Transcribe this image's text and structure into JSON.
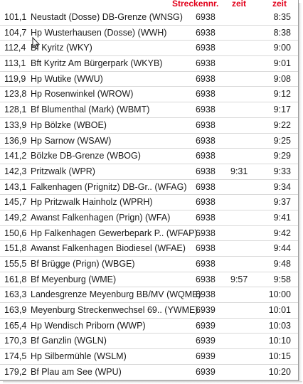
{
  "header": {
    "strecke": "Streckennr.",
    "zeit1": "zeit",
    "zeit2": "zeit"
  },
  "rows": [
    {
      "km": "101,1",
      "name": "Neustadt (Dosse) DB-Grenze (WNSG)",
      "strecke": "6938",
      "an": "",
      "ab": "8:35"
    },
    {
      "km": "104,7",
      "name": "Hp Wusterhausen (Dosse) (WWH)",
      "strecke": "6938",
      "an": "",
      "ab": "8:38"
    },
    {
      "km": "112,4",
      "name": "Bf Kyritz (WKY)",
      "strecke": "6938",
      "an": "",
      "ab": "9:00"
    },
    {
      "km": "113,1",
      "name": "Bft Kyritz Am Bürgerpark (WKYB)",
      "strecke": "6938",
      "an": "",
      "ab": "9:01"
    },
    {
      "km": "119,9",
      "name": "Hp Wutike (WWU)",
      "strecke": "6938",
      "an": "",
      "ab": "9:08"
    },
    {
      "km": "123,8",
      "name": "Hp Rosenwinkel (WROW)",
      "strecke": "6938",
      "an": "",
      "ab": "9:12"
    },
    {
      "km": "128,1",
      "name": "Bf Blumenthal (Mark) (WBMT)",
      "strecke": "6938",
      "an": "",
      "ab": "9:17"
    },
    {
      "km": "133,9",
      "name": "Hp Bölzke (WBOE)",
      "strecke": "6938",
      "an": "",
      "ab": "9:22"
    },
    {
      "km": "136,9",
      "name": "Hp Sarnow (WSAW)",
      "strecke": "6938",
      "an": "",
      "ab": "9:25"
    },
    {
      "km": "141,2",
      "name": "Bölzke DB-Grenze (WBOG)",
      "strecke": "6938",
      "an": "",
      "ab": "9:29"
    },
    {
      "km": "142,3",
      "name": "Pritzwalk (WPR)",
      "strecke": "6938",
      "an": "9:31",
      "ab": "9:33"
    },
    {
      "km": "143,1",
      "name": "Falkenhagen (Prignitz) DB-Gr.. (WFAG)",
      "strecke": "6938",
      "an": "",
      "ab": "9:34"
    },
    {
      "km": "145,7",
      "name": "Hp Pritzwalk Hainholz (WPRH)",
      "strecke": "6938",
      "an": "",
      "ab": "9:37"
    },
    {
      "km": "149,2",
      "name": "Awanst Falkenhagen (Prign) (WFA)",
      "strecke": "6938",
      "an": "",
      "ab": "9:41"
    },
    {
      "km": "150,6",
      "name": "Hp Falkenhagen Gewerbepark P.. (WFAP)",
      "strecke": "6938",
      "an": "",
      "ab": "9:42"
    },
    {
      "km": "151,8",
      "name": "Awanst Falkenhagen Biodiesel (WFAE)",
      "strecke": "6938",
      "an": "",
      "ab": "9:44"
    },
    {
      "km": "155,5",
      "name": "Bf Brügge (Prign) (WBGE)",
      "strecke": "6938",
      "an": "",
      "ab": "9:48"
    },
    {
      "km": "161,8",
      "name": "Bf Meyenburg (WME)",
      "strecke": "6938",
      "an": "9:57",
      "ab": "9:58"
    },
    {
      "km": "163,3",
      "name": "Landesgrenze Meyenburg BB/MV (WQME)",
      "strecke": "6938",
      "an": "",
      "ab": "10:00"
    },
    {
      "km": "163,9",
      "name": "Meyenburg Streckenwechsel 69.. (YWME)",
      "strecke": "6939",
      "an": "",
      "ab": "10:01"
    },
    {
      "km": "165,4",
      "name": "Hp Wendisch Priborn (WWP)",
      "strecke": "6939",
      "an": "",
      "ab": "10:03"
    },
    {
      "km": "170,3",
      "name": "Bf Ganzlin (WGLN)",
      "strecke": "6939",
      "an": "",
      "ab": "10:10"
    },
    {
      "km": "174,5",
      "name": "Hp Silbermühle (WSLM)",
      "strecke": "6939",
      "an": "",
      "ab": "10:15"
    },
    {
      "km": "179,2",
      "name": "Bf Plau am See (WPU)",
      "strecke": "6939",
      "an": "",
      "ab": "10:20"
    }
  ],
  "colors": {
    "header_text": "#e2001a",
    "row_divider": "#d9d9d9",
    "text": "#1a1a1a"
  },
  "icons": {
    "cursor": "mouse-pointer-icon"
  }
}
